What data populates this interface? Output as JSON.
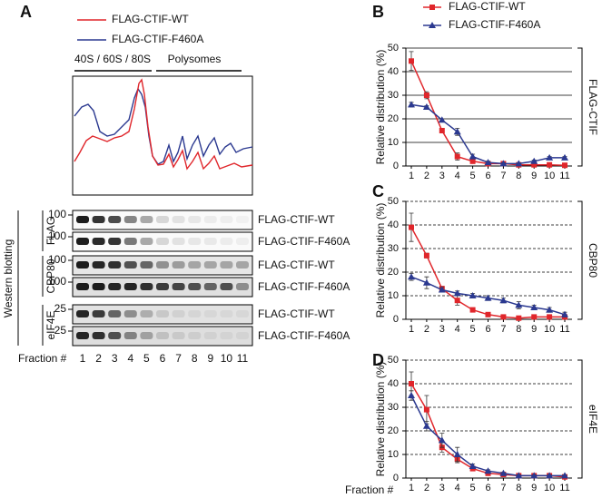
{
  "panel_a": {
    "label": "A",
    "legend": [
      {
        "name": "FLAG-CTIF-WT",
        "color": "#e0262b"
      },
      {
        "name": "FLAG-CTIF-F460A",
        "color": "#2b3990"
      }
    ],
    "profile_labels": [
      "40S / 60S / 80S",
      "Polysomes"
    ],
    "blot_title": "Western blotting",
    "blot_groups": [
      {
        "name": "FLAG",
        "rows": [
          {
            "mw": "100",
            "label": "FLAG-CTIF-WT"
          },
          {
            "mw": "100",
            "label": "FLAG-CTIF-F460A"
          }
        ]
      },
      {
        "name": "CBP80",
        "rows": [
          {
            "mw": "100",
            "label": "FLAG-CTIF-WT"
          },
          {
            "mw": "100",
            "label": "FLAG-CTIF-F460A"
          }
        ]
      },
      {
        "name": "eIF4E",
        "rows": [
          {
            "mw": "25",
            "label": "FLAG-CTIF-WT"
          },
          {
            "mw": "25",
            "label": "FLAG-CTIF-F460A"
          }
        ]
      }
    ],
    "fraction_label": "Fraction #",
    "fractions": [
      "1",
      "2",
      "3",
      "4",
      "5",
      "6",
      "7",
      "8",
      "9",
      "10",
      "11"
    ]
  },
  "chart_data": [
    {
      "type": "line",
      "panel": "B",
      "y_label": "Relative distribution (%)",
      "side_label": "FLAG-CTIF",
      "categories": [
        "1",
        "2",
        "3",
        "4",
        "5",
        "6",
        "7",
        "8",
        "9",
        "10",
        "11"
      ],
      "ylim": [
        0,
        50
      ],
      "yticks": [
        0,
        10,
        20,
        30,
        40,
        50
      ],
      "grid": "solid",
      "series": [
        {
          "name": "FLAG-CTIF-WT",
          "color": "#e0262b",
          "marker": "square",
          "values": [
            44.5,
            30,
            15,
            4,
            2,
            1,
            1,
            0.5,
            0.5,
            0.5,
            0.3
          ],
          "errors": [
            4,
            1.5,
            1,
            1.5,
            0.5,
            0.3,
            0.3,
            0.2,
            0.2,
            0.2,
            0.2
          ]
        },
        {
          "name": "FLAG-CTIF-F460A",
          "color": "#2b3990",
          "marker": "triangle",
          "values": [
            26,
            25,
            19.5,
            14.5,
            4,
            1.5,
            1,
            1,
            2,
            3.5,
            3.5
          ],
          "errors": [
            1,
            0.5,
            0.5,
            1.5,
            1,
            0.5,
            0.3,
            0.3,
            0.5,
            0.5,
            0.5
          ]
        }
      ]
    },
    {
      "type": "line",
      "panel": "C",
      "y_label": "Relative distribution (%)",
      "side_label": "CBP80",
      "categories": [
        "1",
        "2",
        "3",
        "4",
        "5",
        "6",
        "7",
        "8",
        "9",
        "10",
        "11"
      ],
      "ylim": [
        0,
        50
      ],
      "yticks": [
        0,
        10,
        20,
        30,
        40,
        50
      ],
      "grid": "dashed",
      "series": [
        {
          "color": "#e0262b",
          "marker": "square",
          "values": [
            39,
            27,
            13,
            8,
            4,
            2,
            1,
            0.5,
            1,
            1,
            1
          ],
          "errors": [
            6,
            1,
            1,
            2,
            0.5,
            0.5,
            0.3,
            0.3,
            0.3,
            0.5,
            0.5
          ]
        },
        {
          "color": "#2b3990",
          "marker": "triangle",
          "values": [
            18,
            15.5,
            12.5,
            11,
            10,
            9,
            8,
            6,
            5,
            4,
            2
          ],
          "errors": [
            1.5,
            2.5,
            1,
            1,
            1,
            1,
            1,
            1.5,
            1,
            1,
            1
          ]
        }
      ]
    },
    {
      "type": "line",
      "panel": "D",
      "y_label": "Relative distribution (%)",
      "side_label": "eIF4E",
      "x_label": "Fraction #",
      "categories": [
        "1",
        "2",
        "3",
        "4",
        "5",
        "6",
        "7",
        "8",
        "9",
        "10",
        "11"
      ],
      "ylim": [
        0,
        50
      ],
      "yticks": [
        0,
        10,
        20,
        30,
        40,
        50
      ],
      "grid": "dashed",
      "series": [
        {
          "color": "#e0262b",
          "marker": "square",
          "values": [
            40,
            29,
            13,
            8,
            4,
            2,
            1.5,
            1,
            1,
            1,
            0.5
          ],
          "errors": [
            5,
            6,
            2,
            1.5,
            0.5,
            0.3,
            0.3,
            0.3,
            0.3,
            0.3,
            0.3
          ]
        },
        {
          "color": "#2b3990",
          "marker": "triangle",
          "values": [
            35,
            22,
            16,
            10,
            5,
            3,
            2,
            1,
            1,
            1,
            1
          ],
          "errors": [
            2,
            2,
            3,
            3,
            1,
            0.5,
            0.3,
            0.3,
            0.3,
            0.3,
            0.3
          ]
        }
      ]
    }
  ]
}
